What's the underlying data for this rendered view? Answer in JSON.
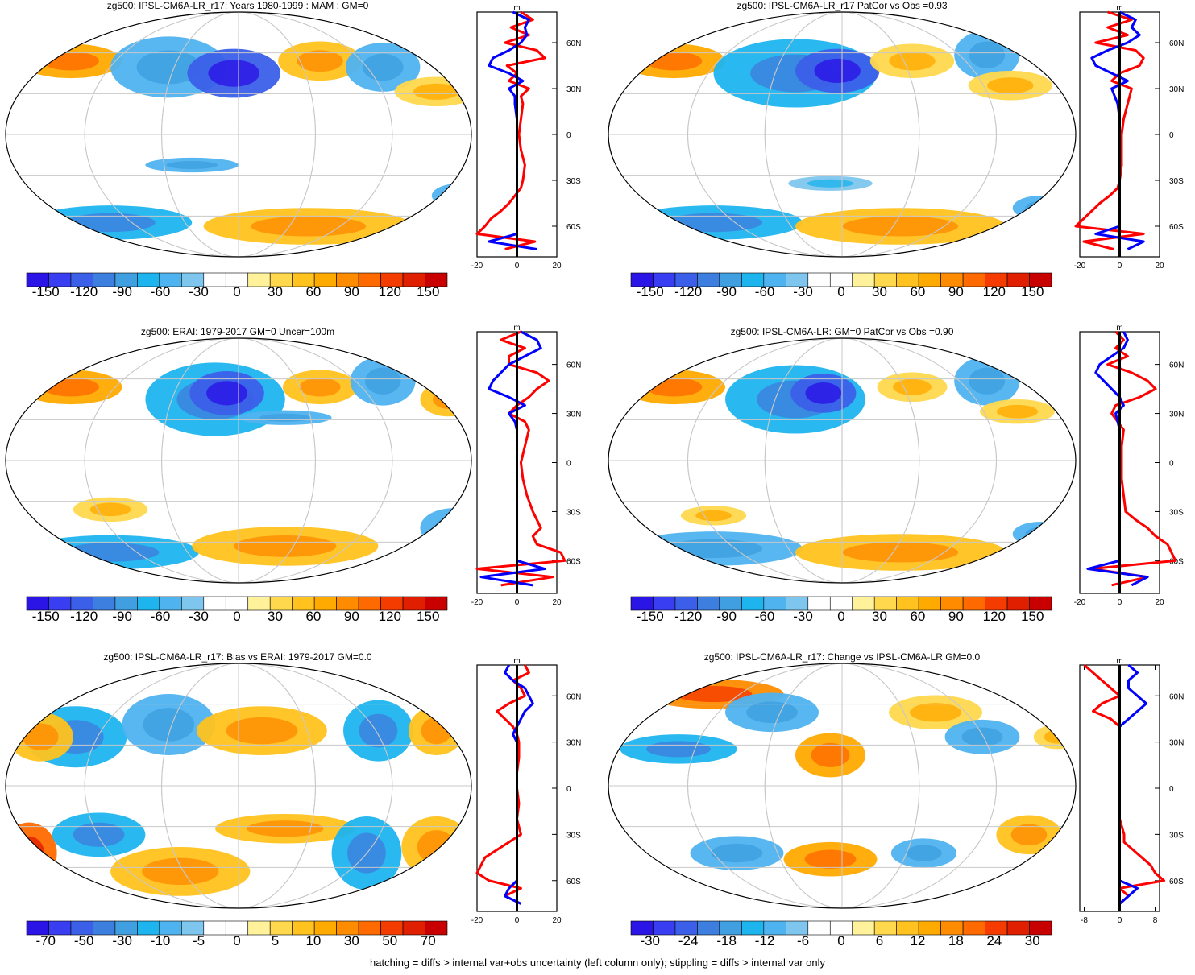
{
  "footer": "hatching = diffs > internal var+obs uncertainty (left column only); stippling = diffs > internal var only",
  "palette_main": [
    "#2a14e6",
    "#3a3ef2",
    "#3b5fe8",
    "#3d7fdf",
    "#3f9fe0",
    "#1eb4ee",
    "#4fb3f0",
    "#7ec6ee",
    "#ffffff",
    "#ffffff",
    "#fff29a",
    "#ffd84d",
    "#ffc21e",
    "#ffaa00",
    "#ff8c00",
    "#ff6a00",
    "#f53c00",
    "#e01e00",
    "#c80000"
  ],
  "chart_data": [
    {
      "type": "heatmap",
      "title": "zg500: IPSL-CM6A-LR_r17: Years 1980-1999 : MAM : GM=0",
      "colorbar_labels": [
        "-150",
        "-120",
        "-90",
        "-60",
        "-30",
        "0",
        "30",
        "60",
        "90",
        "120",
        "150"
      ],
      "zonal_mean": {
        "units": "m",
        "x_ticks": [
          "-20",
          "0",
          "20"
        ],
        "lat_ticks": [
          "60N",
          "30N",
          "0",
          "30S",
          "60S"
        ],
        "series": [
          {
            "color": "#ff0000",
            "lat": [
              80,
              75,
              70,
              65,
              60,
              55,
              50,
              45,
              40,
              35,
              30,
              25,
              20,
              10,
              0,
              -10,
              -20,
              -30,
              -35,
              -40,
              -45,
              -50,
              -55,
              -60,
              -65,
              -70,
              -75
            ],
            "values": [
              2,
              8,
              -3,
              6,
              -6,
              10,
              14,
              -5,
              0,
              -4,
              6,
              2,
              3,
              2,
              1,
              2,
              4,
              3,
              2,
              -1,
              -4,
              -8,
              -13,
              -16,
              -20,
              9,
              -6
            ]
          },
          {
            "color": "#0000ff",
            "lat": [
              80,
              75,
              70,
              65,
              60,
              55,
              50,
              45,
              40,
              35,
              30,
              25,
              20,
              10,
              0,
              -10,
              -20,
              -30,
              -35,
              -40,
              -45,
              -50,
              -55,
              -60,
              -65,
              -70,
              -75
            ],
            "values": [
              -2,
              6,
              4,
              5,
              2,
              -4,
              -12,
              -14,
              -4,
              3,
              -4,
              -1,
              -1,
              0,
              0,
              0,
              0,
              0,
              0,
              0,
              0,
              0,
              0,
              0,
              0,
              -14,
              10
            ]
          }
        ],
        "xlim": [
          -20,
          20
        ]
      }
    },
    {
      "type": "heatmap",
      "title": "zg500: IPSL-CM6A-LR_r17 PatCor vs Obs =0.93",
      "colorbar_labels": [
        "-150",
        "-120",
        "-90",
        "-60",
        "-30",
        "0",
        "30",
        "60",
        "90",
        "120",
        "150"
      ],
      "zonal_mean": {
        "units": "m",
        "x_ticks": [
          "-20",
          "0",
          "20"
        ],
        "lat_ticks": [
          "60N",
          "30N",
          "0",
          "30S",
          "60S"
        ],
        "series": [
          {
            "color": "#ff0000",
            "lat": [
              80,
              75,
              70,
              65,
              60,
              55,
              50,
              45,
              40,
              35,
              30,
              20,
              10,
              0,
              -10,
              -20,
              -30,
              -35,
              -40,
              -45,
              -50,
              -55,
              -60,
              -65,
              -70,
              -75
            ],
            "values": [
              -6,
              6,
              -6,
              4,
              -12,
              8,
              12,
              10,
              0,
              -4,
              6,
              4,
              2,
              1,
              1,
              1,
              0,
              -1,
              -5,
              -10,
              -14,
              -18,
              -22,
              12,
              -18,
              -3
            ]
          },
          {
            "color": "#0000ff",
            "lat": [
              80,
              75,
              70,
              65,
              60,
              55,
              50,
              45,
              40,
              35,
              30,
              20,
              10,
              0,
              -10,
              -20,
              -30,
              -35,
              -40,
              -45,
              -50,
              -55,
              -60,
              -65,
              -70,
              -75
            ],
            "values": [
              0,
              8,
              6,
              10,
              4,
              -6,
              -14,
              -12,
              -4,
              4,
              -4,
              -1,
              0,
              0,
              0,
              0,
              0,
              0,
              0,
              0,
              0,
              0,
              0,
              -12,
              12,
              4
            ]
          }
        ],
        "xlim": [
          -20,
          20
        ]
      }
    },
    {
      "type": "heatmap",
      "title": "zg500: ERAI: 1979-2017 GM=0 Uncer=100m",
      "colorbar_labels": [
        "-150",
        "-120",
        "-90",
        "-60",
        "-30",
        "0",
        "30",
        "60",
        "90",
        "120",
        "150"
      ],
      "zonal_mean": {
        "units": "m",
        "x_ticks": [
          "-20",
          "0",
          "20"
        ],
        "lat_ticks": [
          "60N",
          "30N",
          "0",
          "30S",
          "60S"
        ],
        "series": [
          {
            "color": "#ff0000",
            "lat": [
              80,
              75,
              70,
              65,
              60,
              55,
              50,
              45,
              40,
              35,
              30,
              25,
              20,
              10,
              0,
              -10,
              -20,
              -30,
              -35,
              -40,
              -45,
              -50,
              -55,
              -60,
              -65,
              -70,
              -75
            ],
            "values": [
              2,
              -8,
              4,
              -4,
              -4,
              10,
              16,
              10,
              6,
              0,
              -4,
              4,
              6,
              4,
              2,
              3,
              5,
              8,
              10,
              12,
              8,
              10,
              22,
              24,
              -20,
              18,
              -8
            ]
          },
          {
            "color": "#0000ff",
            "lat": [
              80,
              75,
              70,
              65,
              60,
              55,
              50,
              45,
              40,
              35,
              30,
              25,
              20,
              10,
              0,
              -10,
              -20,
              -30,
              -35,
              -40,
              -45,
              -50,
              -55,
              -60,
              -65,
              -70,
              -75
            ],
            "values": [
              2,
              10,
              12,
              4,
              -4,
              -8,
              -12,
              -14,
              -4,
              4,
              -4,
              -1,
              0,
              0,
              0,
              0,
              0,
              0,
              0,
              0,
              0,
              0,
              0,
              0,
              14,
              -18,
              8
            ]
          }
        ],
        "xlim": [
          -20,
          20
        ]
      }
    },
    {
      "type": "heatmap",
      "title": "zg500: IPSL-CM6A-LR: GM=0 PatCor vs Obs =0.90",
      "colorbar_labels": [
        "-150",
        "-120",
        "-90",
        "-60",
        "-30",
        "0",
        "30",
        "60",
        "90",
        "120",
        "150"
      ],
      "zonal_mean": {
        "units": "m",
        "x_ticks": [
          "-20",
          "0",
          "20"
        ],
        "lat_ticks": [
          "60N",
          "30N",
          "0",
          "30S",
          "60S"
        ],
        "series": [
          {
            "color": "#ff0000",
            "lat": [
              80,
              75,
              70,
              65,
              60,
              55,
              50,
              45,
              40,
              35,
              30,
              20,
              10,
              0,
              -10,
              -20,
              -30,
              -35,
              -40,
              -45,
              -50,
              -55,
              -60,
              -65,
              -70,
              -75
            ],
            "values": [
              -2,
              2,
              -2,
              4,
              -6,
              6,
              14,
              18,
              10,
              -2,
              -4,
              2,
              1,
              1,
              1,
              2,
              3,
              8,
              14,
              18,
              24,
              26,
              28,
              -14,
              14,
              -4
            ]
          },
          {
            "color": "#0000ff",
            "lat": [
              80,
              75,
              70,
              65,
              60,
              55,
              50,
              45,
              40,
              35,
              30,
              20,
              10,
              0,
              -10,
              -20,
              -30,
              -35,
              -40,
              -45,
              -50,
              -55,
              -60,
              -65,
              -70,
              -75
            ],
            "values": [
              2,
              4,
              2,
              -4,
              -10,
              -12,
              -8,
              -4,
              0,
              2,
              -2,
              0,
              0,
              0,
              0,
              0,
              0,
              0,
              0,
              0,
              0,
              0,
              0,
              -16,
              14,
              6
            ]
          }
        ],
        "xlim": [
          -20,
          20
        ]
      }
    },
    {
      "type": "heatmap",
      "title": "zg500: IPSL-CM6A-LR_r17: Bias vs ERAI: 1979-2017 GM=0.0",
      "colorbar_labels": [
        "-70",
        "-50",
        "-30",
        "-10",
        "-5",
        "0",
        "5",
        "10",
        "30",
        "50",
        "70"
      ],
      "zonal_mean": {
        "units": "m",
        "x_ticks": [
          "-20",
          "0",
          "20"
        ],
        "lat_ticks": [
          "60N",
          "30N",
          "0",
          "30S",
          "60S"
        ],
        "series": [
          {
            "color": "#ff0000",
            "lat": [
              80,
              75,
              70,
              65,
              60,
              55,
              50,
              45,
              40,
              35,
              30,
              20,
              10,
              0,
              -10,
              -20,
              -30,
              -35,
              -40,
              -45,
              -50,
              -55,
              -60,
              -65,
              -70,
              -75
            ],
            "values": [
              4,
              6,
              -2,
              2,
              4,
              -4,
              -10,
              -6,
              -2,
              0,
              1,
              1,
              0,
              0,
              1,
              0,
              2,
              -4,
              -10,
              -16,
              -18,
              -20,
              -14,
              2,
              -6,
              2
            ]
          },
          {
            "color": "#0000ff",
            "lat": [
              80,
              75,
              70,
              65,
              60,
              55,
              50,
              45,
              40,
              35,
              30,
              20,
              10,
              0,
              -10,
              -20,
              -30,
              -35,
              -40,
              -45,
              -50,
              -55,
              -60,
              -65,
              -70,
              -75
            ],
            "values": [
              -4,
              -6,
              -2,
              4,
              6,
              8,
              4,
              2,
              0,
              -2,
              0,
              0,
              0,
              0,
              0,
              0,
              0,
              0,
              0,
              0,
              0,
              0,
              0,
              -4,
              -6,
              2
            ]
          }
        ],
        "xlim": [
          -20,
          20
        ]
      }
    },
    {
      "type": "heatmap",
      "title": "zg500: IPSL-CM6A-LR_r17: Change vs IPSL-CM6A-LR GM=0.0",
      "colorbar_labels": [
        "-30",
        "-24",
        "-18",
        "-12",
        "-6",
        "0",
        "6",
        "12",
        "18",
        "24",
        "30"
      ],
      "zonal_mean": {
        "units": "m",
        "x_ticks": [
          "-8",
          "0",
          "8"
        ],
        "lat_ticks": [
          "60N",
          "30N",
          "0",
          "30S",
          "60S"
        ],
        "series": [
          {
            "color": "#ff0000",
            "lat": [
              80,
              75,
              70,
              65,
              60,
              55,
              50,
              45,
              40,
              35,
              30,
              20,
              10,
              0,
              -10,
              -20,
              -30,
              -35,
              -40,
              -45,
              -50,
              -55,
              -60,
              -65,
              -70,
              -75
            ],
            "values": [
              -8,
              -6,
              -4,
              -2,
              0,
              -4,
              -6,
              -2,
              0,
              0,
              0,
              0,
              0,
              0,
              0,
              0,
              1,
              1,
              3,
              5,
              7,
              8,
              10,
              0,
              2,
              0
            ]
          },
          {
            "color": "#0000ff",
            "lat": [
              80,
              75,
              70,
              65,
              60,
              55,
              50,
              45,
              40,
              35,
              30,
              20,
              10,
              0,
              -10,
              -20,
              -30,
              -35,
              -40,
              -45,
              -50,
              -55,
              -60,
              -65,
              -70,
              -75
            ],
            "values": [
              2,
              4,
              2,
              2,
              4,
              6,
              4,
              2,
              0,
              0,
              0,
              0,
              0,
              0,
              0,
              0,
              0,
              0,
              0,
              0,
              0,
              0,
              0,
              4,
              2,
              0
            ]
          }
        ],
        "xlim": [
          -9,
          9
        ]
      }
    }
  ]
}
